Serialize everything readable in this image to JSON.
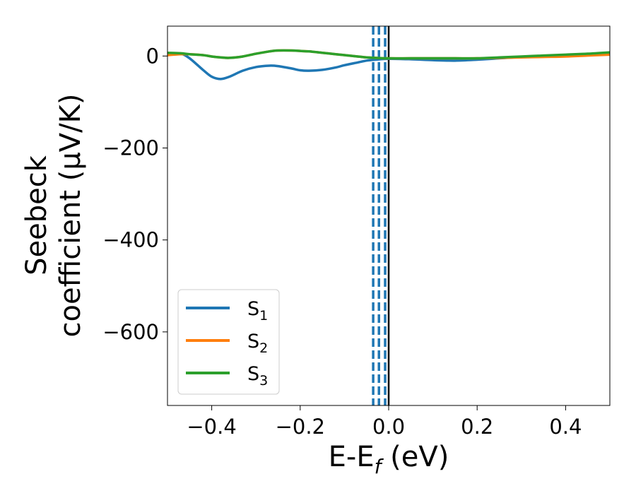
{
  "chart_data": {
    "type": "line",
    "title": "",
    "xlabel_main": "E-E",
    "xlabel_sub": "f",
    "xlabel_unit": " (eV)",
    "ylabel_line1": "Seebeck",
    "ylabel_line2": "coefficient  (μV/K)",
    "xlim": [
      -0.5,
      0.5
    ],
    "ylim": [
      -760,
      65
    ],
    "xticks": [
      -0.4,
      -0.2,
      0.0,
      0.2,
      0.4
    ],
    "xtick_labels": [
      "−0.4",
      "−0.2",
      "0.0",
      "0.2",
      "0.4"
    ],
    "yticks": [
      0,
      -200,
      -400,
      -600
    ],
    "ytick_labels": [
      "0",
      "−200",
      "−400",
      "−600"
    ],
    "grid": false,
    "legend_position": "lower-left",
    "vlines": [
      {
        "x": 0.0,
        "color": "#000000",
        "style": "solid"
      },
      {
        "x": -0.035,
        "color": "#1f77b4",
        "style": "dashed"
      },
      {
        "x": -0.022,
        "color": "#1f77b4",
        "style": "dashed"
      },
      {
        "x": -0.008,
        "color": "#1f77b4",
        "style": "dashed"
      }
    ],
    "series": [
      {
        "name": "S",
        "subscript": "1",
        "color": "#1f77b4",
        "x": [
          -0.5,
          -0.47,
          -0.45,
          -0.42,
          -0.4,
          -0.38,
          -0.36,
          -0.33,
          -0.3,
          -0.27,
          -0.25,
          -0.22,
          -0.2,
          -0.18,
          -0.15,
          -0.12,
          -0.1,
          -0.07,
          -0.05,
          -0.03,
          0.0,
          0.05,
          0.1,
          0.15,
          0.2,
          0.25,
          0.3,
          0.35,
          0.4,
          0.45,
          0.5
        ],
        "y": [
          5,
          5,
          -5,
          -30,
          -45,
          -50,
          -45,
          -32,
          -24,
          -21,
          -22,
          -27,
          -31,
          -32,
          -30,
          -25,
          -20,
          -14,
          -10,
          -8,
          -6,
          -7,
          -9,
          -10,
          -8,
          -5,
          -2,
          0,
          2,
          4,
          5
        ]
      },
      {
        "name": "S",
        "subscript": "2",
        "color": "#ff7f0e",
        "x": [
          -0.5,
          -0.47,
          -0.45,
          -0.42,
          -0.4,
          -0.38,
          -0.36,
          -0.33,
          -0.3,
          -0.27,
          -0.25,
          -0.22,
          -0.2,
          -0.18,
          -0.15,
          -0.12,
          -0.1,
          -0.07,
          -0.05,
          -0.03,
          0.0,
          0.05,
          0.1,
          0.15,
          0.2,
          0.25,
          0.3,
          0.35,
          0.4,
          0.45,
          0.5
        ],
        "y": [
          2,
          4,
          4,
          2,
          -1,
          -3,
          -4,
          -1,
          5,
          10,
          12,
          12,
          11,
          10,
          7,
          4,
          2,
          -1,
          -3,
          -4,
          -5,
          -5,
          -5,
          -5,
          -5,
          -4,
          -3,
          -2,
          -1,
          1,
          3
        ]
      },
      {
        "name": "S",
        "subscript": "3",
        "color": "#2ca02c",
        "x": [
          -0.5,
          -0.47,
          -0.45,
          -0.42,
          -0.4,
          -0.38,
          -0.36,
          -0.33,
          -0.3,
          -0.27,
          -0.25,
          -0.22,
          -0.2,
          -0.18,
          -0.15,
          -0.12,
          -0.1,
          -0.07,
          -0.05,
          -0.03,
          0.0,
          0.05,
          0.1,
          0.15,
          0.2,
          0.25,
          0.3,
          0.35,
          0.4,
          0.45,
          0.5
        ],
        "y": [
          7,
          6,
          4,
          2,
          -1,
          -3,
          -4,
          -1,
          5,
          10,
          12,
          12,
          11,
          10,
          7,
          4,
          2,
          -1,
          -3,
          -4,
          -5,
          -5,
          -5,
          -5,
          -5,
          -3,
          -1,
          1,
          3,
          5,
          8
        ]
      }
    ]
  }
}
